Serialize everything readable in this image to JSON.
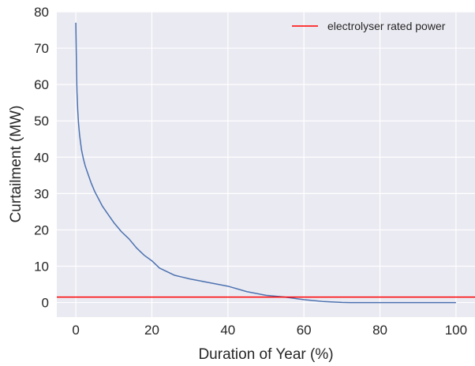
{
  "chart_data": {
    "type": "line",
    "title": "",
    "xlabel": "Duration of Year (%)",
    "ylabel": "Curtailment (MW)",
    "xlim": [
      -5,
      105
    ],
    "ylim": [
      -4,
      80
    ],
    "x_ticks": [
      "0",
      "20",
      "40",
      "60",
      "80",
      "100"
    ],
    "y_ticks": [
      "0",
      "10",
      "20",
      "30",
      "40",
      "50",
      "60",
      "70",
      "80"
    ],
    "grid": true,
    "legend_position": "top-right",
    "series": [
      {
        "kind": "line",
        "color": "#4c72b0",
        "x": [
          0,
          0.1,
          0.2,
          0.3,
          0.5,
          0.7,
          1,
          1.5,
          2,
          2.5,
          3,
          4,
          5,
          6,
          7,
          8,
          9,
          10,
          12,
          14,
          16,
          18,
          20,
          22,
          24,
          26,
          28,
          30,
          35,
          40,
          45,
          50,
          55,
          60,
          65,
          70,
          72,
          75,
          80,
          90,
          100
        ],
        "y": [
          77,
          70,
          63,
          58,
          53,
          49.5,
          46,
          42,
          39.5,
          37.5,
          36,
          33,
          30.5,
          28.5,
          26.5,
          25,
          23.5,
          22,
          19.5,
          17.5,
          15,
          13,
          11.5,
          9.5,
          8.5,
          7.5,
          7,
          6.5,
          5.5,
          4.5,
          3,
          2,
          1.5,
          0.8,
          0.3,
          0.05,
          0,
          0,
          0,
          0,
          0
        ]
      },
      {
        "kind": "hline",
        "name": "electrolyser rated power",
        "color": "#ff0000",
        "y": 1.5
      }
    ]
  }
}
